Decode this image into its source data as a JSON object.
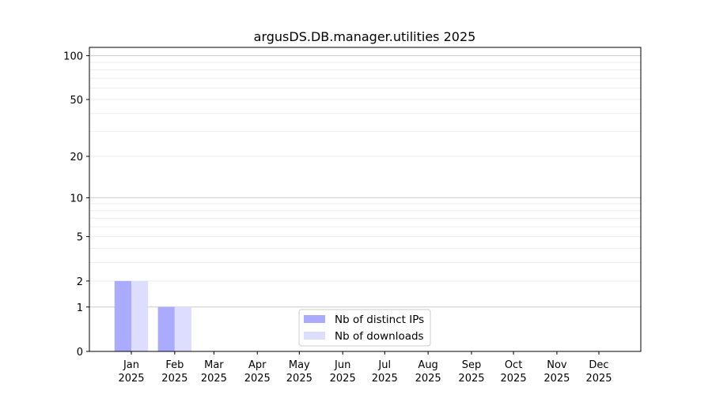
{
  "chart_data": {
    "type": "bar",
    "title": "argusDS.DB.manager.utilities 2025",
    "xlabel": "",
    "ylabel": "",
    "yscale": "symlog (log10(1+y))",
    "ylim": [
      0,
      114
    ],
    "yticks": [
      0,
      1,
      2,
      5,
      10,
      20,
      50,
      100
    ],
    "grid": true,
    "legend_position": "lower-center",
    "categories": [
      "Jan\n2025",
      "Feb\n2025",
      "Mar\n2025",
      "Apr\n2025",
      "May\n2025",
      "Jun\n2025",
      "Jul\n2025",
      "Aug\n2025",
      "Sep\n2025",
      "Oct\n2025",
      "Nov\n2025",
      "Dec\n2025"
    ],
    "month_labels": [
      "Jan",
      "Feb",
      "Mar",
      "Apr",
      "May",
      "Jun",
      "Jul",
      "Aug",
      "Sep",
      "Oct",
      "Nov",
      "Dec"
    ],
    "year_label": "2025",
    "series": [
      {
        "name": "Nb of distinct IPs",
        "color": "#aaaaff",
        "values": [
          2,
          1,
          0,
          0,
          0,
          0,
          0,
          0,
          0,
          0,
          0,
          0
        ]
      },
      {
        "name": "Nb of downloads",
        "color": "#ddddff",
        "values": [
          2,
          1,
          0,
          0,
          0,
          0,
          0,
          0,
          0,
          0,
          0,
          0
        ]
      }
    ]
  }
}
